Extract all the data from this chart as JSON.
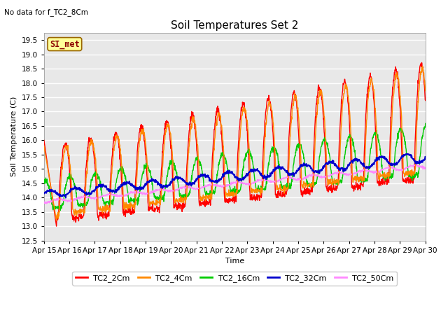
{
  "title": "Soil Temperatures Set 2",
  "subtitle": "No data for f_TC2_8Cm",
  "xlabel": "Time",
  "ylabel": "Soil Temperature (C)",
  "ylim": [
    12.5,
    19.75
  ],
  "yticks": [
    12.5,
    13.0,
    13.5,
    14.0,
    14.5,
    15.0,
    15.5,
    16.0,
    16.5,
    17.0,
    17.5,
    18.0,
    18.5,
    19.0,
    19.5
  ],
  "x_tick_labels": [
    "Apr 15",
    "Apr 16",
    "Apr 17",
    "Apr 18",
    "Apr 19",
    "Apr 20",
    "Apr 21",
    "Apr 22",
    "Apr 23",
    "Apr 24",
    "Apr 25",
    "Apr 26",
    "Apr 27",
    "Apr 28",
    "Apr 29",
    "Apr 30"
  ],
  "legend_labels": [
    "TC2_2Cm",
    "TC2_4Cm",
    "TC2_16Cm",
    "TC2_32Cm",
    "TC2_50Cm"
  ],
  "legend_colors": [
    "#ff0000",
    "#ff8800",
    "#00cc00",
    "#0000cc",
    "#ff88ff"
  ],
  "line_widths": [
    1.0,
    1.0,
    1.0,
    1.3,
    1.0
  ],
  "annotation_box_text": "SI_met",
  "annotation_box_color": "#ffff99",
  "annotation_box_border": "#996600",
  "plot_bg_color": "#e8e8e8",
  "grid_color": "#ffffff",
  "title_fontsize": 11,
  "axis_fontsize": 8,
  "tick_fontsize": 7.5
}
